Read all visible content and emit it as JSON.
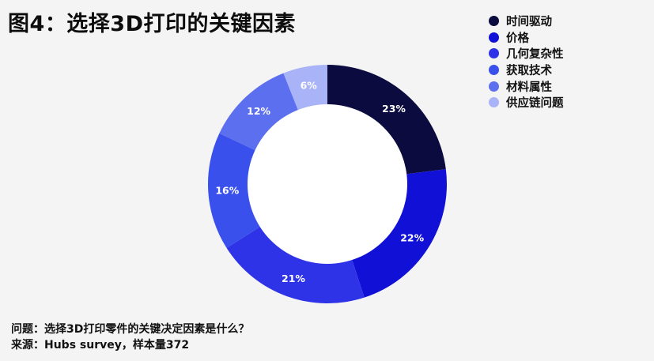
{
  "title": "图4：选择3D打印的关键因素",
  "colors": {
    "background": "#f4f4f4",
    "hole": "#ffffff"
  },
  "chart_data": {
    "type": "pie",
    "donut": true,
    "start": "12 o'clock",
    "direction": "clockwise",
    "legend_position": "top-right",
    "categories": [
      "时间驱动",
      "价格",
      "几何复杂性",
      "获取技术",
      "材料属性",
      "供应链问题"
    ],
    "values": [
      23,
      22,
      21,
      16,
      12,
      6
    ],
    "labels": [
      "23%",
      "22%",
      "21%",
      "16%",
      "12%",
      "6%"
    ],
    "colors": [
      "#0b0b3f",
      "#1010d6",
      "#2f33e8",
      "#3a50ec",
      "#5c6fee",
      "#a9b3f7"
    ],
    "label_colors": [
      "#ffffff",
      "#ffffff",
      "#ffffff",
      "#ffffff",
      "#ffffff",
      "#ffffff"
    ]
  },
  "footer": {
    "question": "问题：选择3D打印零件的关键决定因素是什么？",
    "source": "来源：Hubs survey，样本量372"
  }
}
